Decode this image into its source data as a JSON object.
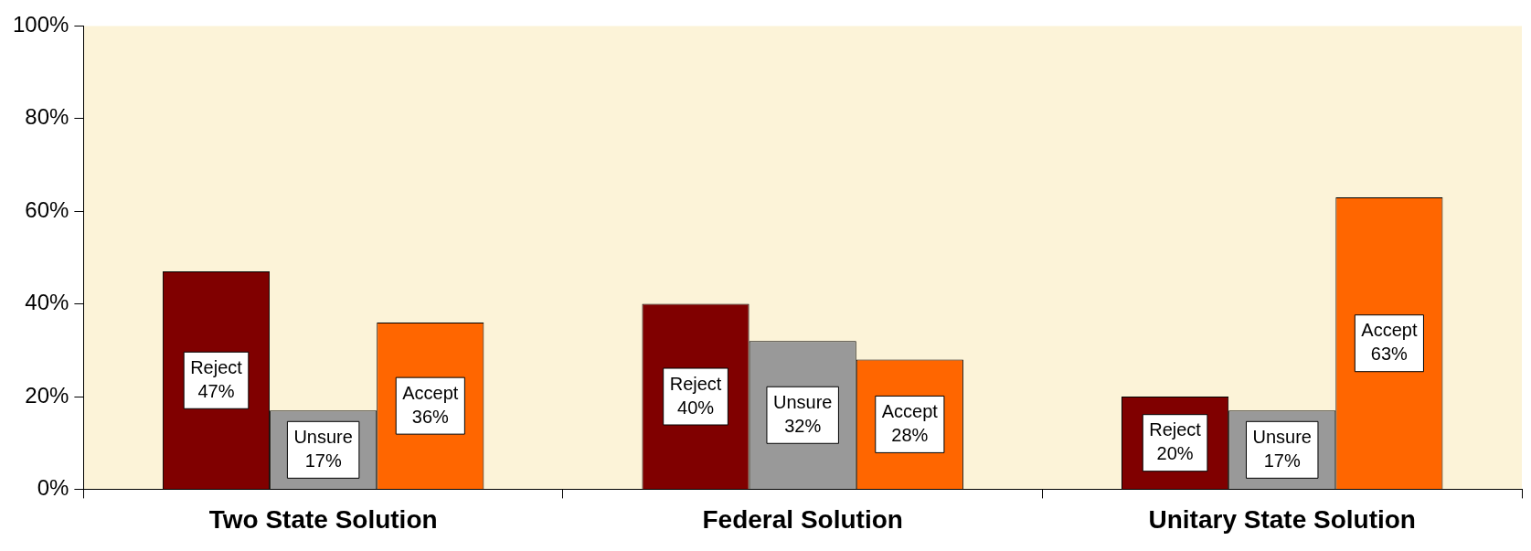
{
  "chart_data": {
    "type": "bar",
    "categories": [
      "Two State Solution",
      "Federal Solution",
      "Unitary State Solution"
    ],
    "series": [
      {
        "name": "Reject",
        "color": "#800000",
        "values": [
          47,
          40,
          20
        ],
        "value_labels": [
          "47%",
          "40%",
          "20%"
        ]
      },
      {
        "name": "Unsure",
        "color": "#999999",
        "values": [
          17,
          32,
          17
        ],
        "value_labels": [
          "17%",
          "32%",
          "17%"
        ]
      },
      {
        "name": "Accept",
        "color": "#ff6600",
        "values": [
          36,
          28,
          63
        ],
        "value_labels": [
          "36%",
          "28%",
          "63%"
        ]
      }
    ],
    "ylim": [
      0,
      100
    ],
    "yticks": [
      {
        "value": 0,
        "label": "0%"
      },
      {
        "value": 20,
        "label": "20%"
      },
      {
        "value": 40,
        "label": "40%"
      },
      {
        "value": 60,
        "label": "60%"
      },
      {
        "value": 80,
        "label": "80%"
      },
      {
        "value": 100,
        "label": "100%"
      }
    ],
    "grid": false,
    "legend": false
  }
}
